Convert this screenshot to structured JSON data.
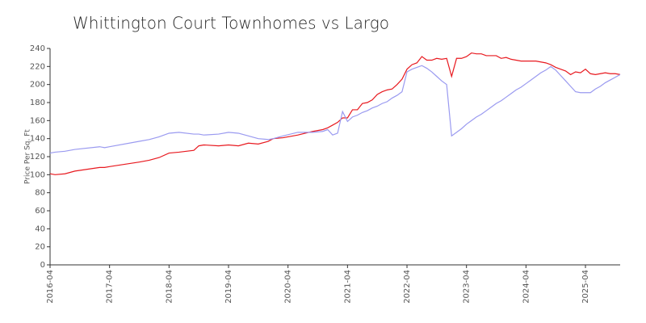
{
  "chart_data": {
    "type": "line",
    "title": "Whittington Court Townhomes vs Largo",
    "y_label": "Price Per Sq. Ft",
    "x": [
      "2016-04",
      "2016-05",
      "2016-07",
      "2016-09",
      "2017-02",
      "2017-03",
      "2017-04",
      "2017-10",
      "2017-12",
      "2018-02",
      "2018-04",
      "2018-06",
      "2018-09",
      "2018-10",
      "2018-11",
      "2019-02",
      "2019-04",
      "2019-06",
      "2019-08",
      "2019-10",
      "2019-12",
      "2020-01",
      "2020-03",
      "2020-06",
      "2020-09",
      "2020-11",
      "2020-12",
      "2021-01",
      "2021-02",
      "2021-03",
      "2021-04",
      "2021-05",
      "2021-06",
      "2021-07",
      "2021-08",
      "2021-09",
      "2021-10",
      "2021-11",
      "2021-12",
      "2022-01",
      "2022-02",
      "2022-03",
      "2022-04",
      "2022-05",
      "2022-06",
      "2022-07",
      "2022-08",
      "2022-09",
      "2022-10",
      "2022-11",
      "2022-12",
      "2023-01",
      "2023-02",
      "2023-03",
      "2023-04",
      "2023-05",
      "2023-06",
      "2023-07",
      "2023-08",
      "2023-09",
      "2023-10",
      "2023-11",
      "2023-12",
      "2024-01",
      "2024-02",
      "2024-03",
      "2024-04",
      "2024-05",
      "2024-06",
      "2024-07",
      "2024-08",
      "2024-09",
      "2024-10",
      "2024-11",
      "2024-12",
      "2025-01",
      "2025-02",
      "2025-03",
      "2025-04",
      "2025-05",
      "2025-06",
      "2025-07",
      "2025-08",
      "2025-09",
      "2025-10",
      "2025-11"
    ],
    "series": [
      {
        "color": "#e8191f",
        "values": [
          101,
          100,
          101,
          104,
          108,
          108,
          109,
          114,
          116,
          119,
          124,
          125,
          127,
          132,
          133,
          132,
          133,
          132,
          135,
          134,
          137,
          140,
          141,
          144,
          148,
          150,
          152,
          155,
          158,
          163,
          163,
          172,
          172,
          179,
          180,
          183,
          189,
          192,
          194,
          195,
          200,
          206,
          217,
          222,
          224,
          231,
          227,
          227,
          229,
          228,
          229,
          209,
          229,
          229,
          231,
          235,
          234,
          234,
          232,
          232,
          232,
          229,
          230,
          228,
          227,
          226,
          226,
          226,
          226,
          225,
          224,
          222,
          219,
          217,
          215,
          211,
          214,
          213,
          217,
          212,
          211,
          212,
          213,
          212,
          212,
          211
        ]
      },
      {
        "color": "#9a9af0",
        "values": [
          124,
          125,
          126,
          128,
          131,
          130,
          131,
          137,
          139,
          142,
          146,
          147,
          145,
          145,
          144,
          145,
          147,
          146,
          143,
          140,
          139,
          140,
          143,
          147,
          147,
          148,
          150,
          144,
          146,
          170,
          159,
          164,
          166,
          169,
          171,
          174,
          176,
          179,
          181,
          185,
          188,
          192,
          214,
          217,
          219,
          221,
          218,
          214,
          209,
          204,
          200,
          143,
          147,
          151,
          156,
          160,
          164,
          167,
          171,
          175,
          179,
          182,
          186,
          190,
          194,
          197,
          201,
          205,
          209,
          213,
          216,
          220,
          216,
          210,
          204,
          198,
          192,
          191,
          191,
          191,
          195,
          198,
          202,
          205,
          208,
          211
        ]
      }
    ],
    "xlim": [
      "2016-04",
      "2025-11"
    ],
    "xticks": [
      "2016-04",
      "2017-04",
      "2018-04",
      "2019-04",
      "2020-04",
      "2021-04",
      "2022-04",
      "2023-04",
      "2024-04",
      "2025-04"
    ],
    "ylim": [
      0,
      240
    ],
    "yticks": [
      0,
      20,
      40,
      60,
      80,
      100,
      120,
      140,
      160,
      180,
      200,
      220,
      240
    ]
  }
}
